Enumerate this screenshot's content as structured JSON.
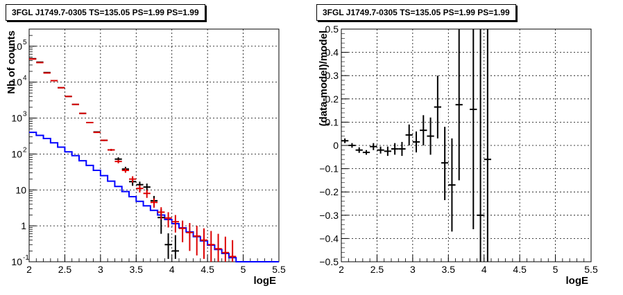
{
  "panels": [
    {
      "title": "3FGL J1749.7-0305 TS=135.05 PS=1.99 PS=1.99",
      "xlabel": "logE",
      "ylabel": "Nb of counts",
      "ylog": true,
      "xlim": [
        2,
        5.5
      ],
      "ylim": [
        0.1,
        300000
      ],
      "xticks": [
        "2",
        "2.5",
        "3",
        "3.5",
        "4",
        "4.5",
        "5",
        "5.5"
      ],
      "yticks": [
        {
          "v": 0.1,
          "base": "10",
          "exp": "-1"
        },
        {
          "v": 1,
          "base": "1",
          "exp": ""
        },
        {
          "v": 10,
          "base": "10",
          "exp": ""
        },
        {
          "v": 100,
          "base": "10",
          "exp": "2"
        },
        {
          "v": 1000,
          "base": "10",
          "exp": "3"
        },
        {
          "v": 10000,
          "base": "10",
          "exp": "4"
        },
        {
          "v": 100000,
          "base": "10",
          "exp": "5"
        }
      ]
    },
    {
      "title": "3FGL J1749.7-0305 TS=135.05 PS=1.99 PS=1.99",
      "xlabel": "logE",
      "ylabel": "(data-model)/model",
      "ylog": false,
      "xlim": [
        2,
        5.5
      ],
      "ylim": [
        -0.5,
        0.5
      ],
      "xticks": [
        "2",
        "2.5",
        "3",
        "3.5",
        "4",
        "4.5",
        "5",
        "5.5"
      ],
      "yticks": [
        "-0.5",
        "-0.4",
        "-0.3",
        "-0.2",
        "-0.1",
        "0",
        "0.1",
        "0.2",
        "0.3",
        "0.4",
        "0.5"
      ]
    }
  ],
  "chart_data": [
    {
      "type": "line",
      "series": [
        {
          "kind": "histogram",
          "color": "#0000ff",
          "edges": [
            2.0,
            2.1,
            2.2,
            2.3,
            2.4,
            2.5,
            2.6,
            2.7,
            2.8,
            2.9,
            3.0,
            3.1,
            3.2,
            3.3,
            3.4,
            3.5,
            3.6,
            3.7,
            3.8,
            3.9,
            4.0,
            4.1,
            4.2,
            4.3,
            4.4,
            4.5,
            4.6,
            4.7,
            4.8,
            4.9,
            5.0,
            5.1,
            5.2,
            5.3,
            5.4,
            5.5
          ],
          "values": [
            400,
            330,
            270,
            205,
            155,
            115,
            90,
            65,
            48,
            35,
            25,
            17.5,
            12.5,
            9,
            6.5,
            4.8,
            3.6,
            2.7,
            2.0,
            1.5,
            1.15,
            0.88,
            0.68,
            0.5,
            0.38,
            0.29,
            0.22,
            0.17,
            0.13,
            0.1,
            0.1,
            0.1,
            0.1,
            0.1,
            0.1
          ]
        },
        {
          "kind": "errorbar",
          "color": "#000000",
          "x": [
            2.05,
            2.15,
            2.25,
            2.35,
            2.45,
            2.55,
            2.65,
            2.75,
            2.85,
            2.95,
            3.05,
            3.15,
            3.25,
            3.35,
            3.45,
            3.55,
            3.65,
            3.75,
            3.85,
            3.95,
            4.05
          ],
          "y": [
            45000,
            36000,
            18500,
            11000,
            7000,
            4000,
            2400,
            1350,
            750,
            410,
            240,
            130,
            72,
            38,
            17,
            14,
            12,
            5,
            1.7,
            0.3,
            0.2
          ],
          "ylo": [
            44800,
            35800,
            18300,
            10900,
            6900,
            3950,
            2350,
            1320,
            730,
            400,
            230,
            122,
            63,
            32,
            13,
            11,
            9,
            3.5,
            0.6,
            0.12,
            0.12
          ],
          "yhi": [
            45200,
            36200,
            18700,
            11100,
            7100,
            4050,
            2450,
            1380,
            770,
            420,
            250,
            138,
            81,
            44,
            21,
            17,
            15,
            6.8,
            2.9,
            0.62,
            0.55
          ]
        },
        {
          "kind": "errorbar",
          "color": "#dd0000",
          "x": [
            2.05,
            2.15,
            2.25,
            2.35,
            2.45,
            2.55,
            2.65,
            2.75,
            2.85,
            2.95,
            3.05,
            3.15,
            3.25,
            3.35,
            3.45,
            3.55,
            3.65,
            3.75,
            3.85,
            3.95,
            4.05,
            4.15,
            4.25,
            4.35,
            4.45,
            4.55,
            4.65,
            4.75,
            4.85
          ],
          "y": [
            44000,
            35000,
            18000,
            11000,
            7000,
            4000,
            2400,
            1350,
            750,
            400,
            240,
            130,
            62,
            35,
            20,
            11,
            8,
            4.5,
            2.4,
            1.65,
            1.3,
            0.85,
            0.65,
            0.52,
            0.4,
            0.3,
            0.23,
            0.18,
            0.14
          ],
          "ylo": [
            43800,
            34800,
            17800,
            10900,
            6900,
            3950,
            2350,
            1320,
            730,
            390,
            230,
            122,
            55,
            30,
            16,
            8.5,
            6,
            3.2,
            1.5,
            0.9,
            0.65,
            0.35,
            0.2,
            0.15,
            0.12,
            0.1,
            0.1,
            0.1,
            0.1
          ],
          "yhi": [
            44200,
            35200,
            18200,
            11100,
            7100,
            4050,
            2450,
            1380,
            770,
            410,
            250,
            138,
            69,
            40,
            24,
            13.5,
            10,
            5.8,
            3.3,
            2.4,
            2.0,
            1.4,
            1.2,
            1.0,
            0.85,
            0.72,
            0.6,
            0.5,
            0.4
          ]
        }
      ]
    },
    {
      "type": "scatter",
      "series": [
        {
          "kind": "errorbar",
          "color": "#000000",
          "x": [
            2.05,
            2.15,
            2.25,
            2.35,
            2.45,
            2.55,
            2.65,
            2.75,
            2.85,
            2.95,
            3.05,
            3.15,
            3.25,
            3.35,
            3.45,
            3.55,
            3.65,
            3.85,
            3.95,
            4.05
          ],
          "y": [
            0.02,
            0.0,
            -0.02,
            -0.03,
            -0.005,
            -0.02,
            -0.025,
            -0.015,
            -0.015,
            0.045,
            0.015,
            0.065,
            0.04,
            0.165,
            -0.075,
            -0.17,
            0.175,
            0.155,
            -0.3,
            -0.06
          ],
          "ylo": [
            0.01,
            -0.01,
            -0.032,
            -0.04,
            -0.02,
            -0.035,
            -0.045,
            -0.04,
            -0.045,
            0.0,
            -0.03,
            0.0,
            -0.04,
            0.03,
            -0.235,
            -0.37,
            -0.15,
            -0.36,
            -0.5,
            -0.5
          ],
          "yhi": [
            0.03,
            0.01,
            -0.008,
            -0.02,
            0.01,
            -0.005,
            -0.005,
            0.01,
            0.015,
            0.09,
            0.06,
            0.13,
            0.12,
            0.3,
            0.08,
            0.03,
            0.5,
            0.5,
            0.5,
            0.5
          ]
        }
      ]
    }
  ]
}
